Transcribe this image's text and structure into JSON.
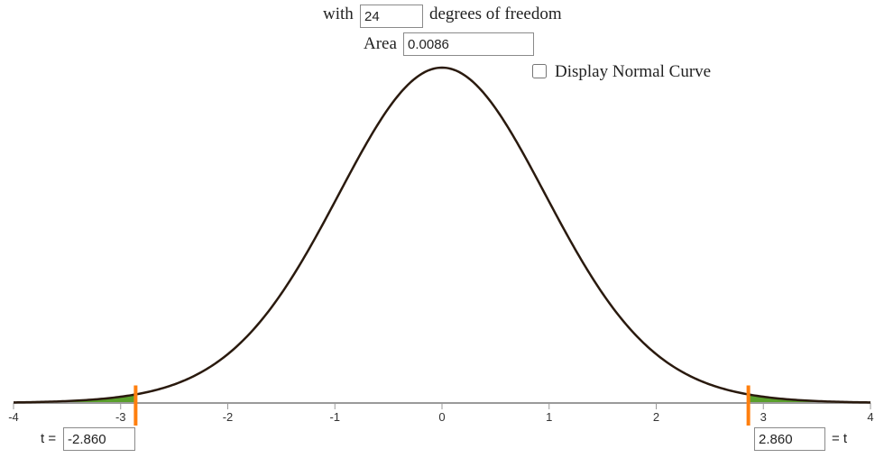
{
  "controls": {
    "df_prefix": "with",
    "df_value": "24",
    "df_suffix": "degrees of freedom",
    "area_label": "Area",
    "area_value": "0.0086",
    "normal_curve_label": "Display Normal Curve",
    "normal_curve_checked": false
  },
  "bounds": {
    "left_label": "t =",
    "left_value": "-2.860",
    "right_value": "2.860",
    "right_label": "= t"
  },
  "chart_data": {
    "type": "area",
    "distribution": "Student t",
    "degrees_of_freedom": 24,
    "xlim": [
      -4,
      4
    ],
    "x_ticks": [
      "-4",
      "-3",
      "-2",
      "-1",
      "0",
      "1",
      "2",
      "3",
      "4"
    ],
    "shaded_regions": [
      {
        "from": -4,
        "to": -2.86
      },
      {
        "from": 2.86,
        "to": 4
      }
    ],
    "critical_values": [
      -2.86,
      2.86
    ],
    "shaded_area": 0.0086,
    "colors": {
      "curve": "#2a1a0e",
      "shade": "#5aa02c",
      "marker": "#ff7f0e",
      "axis": "#9a9a9a"
    }
  }
}
